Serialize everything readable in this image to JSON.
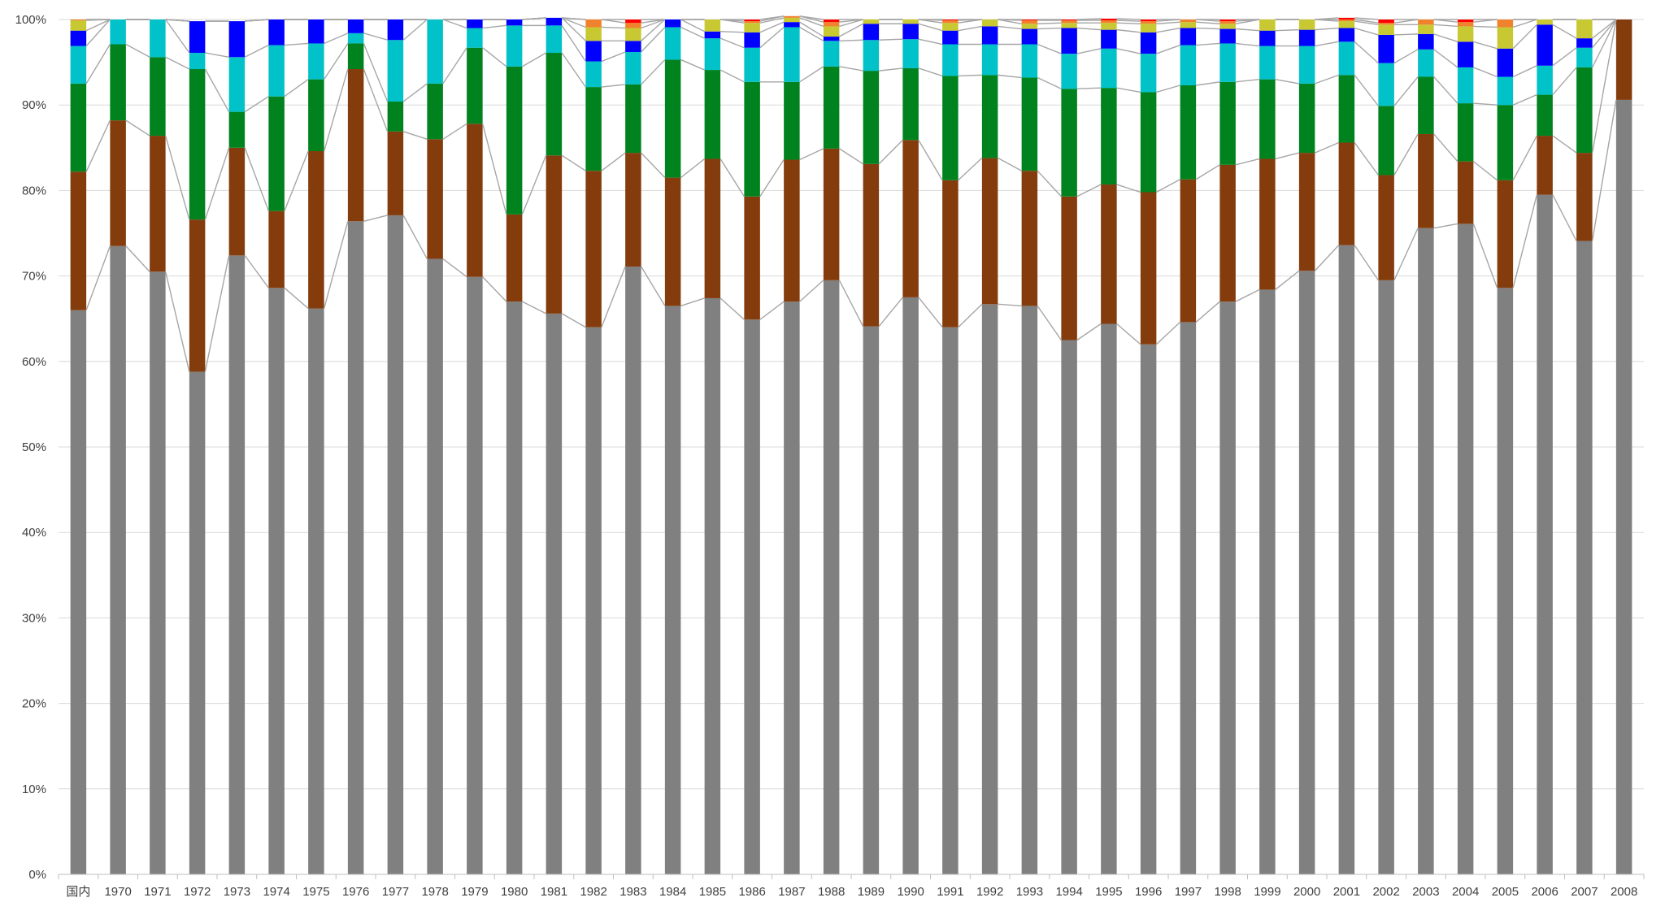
{
  "chart_data": {
    "type": "bar",
    "stacked": true,
    "percent_stacked": true,
    "title": "",
    "xlabel": "",
    "ylabel": "",
    "ylim": [
      0,
      100
    ],
    "y_tick_labels": [
      "0%",
      "10%",
      "20%",
      "30%",
      "40%",
      "50%",
      "60%",
      "70%",
      "80%",
      "90%",
      "100%"
    ],
    "grid": true,
    "legend": "none",
    "series_lines": true,
    "series_line_color": "#a6a6a6",
    "categories": [
      "国内",
      "1970",
      "1971",
      "1972",
      "1973",
      "1974",
      "1975",
      "1976",
      "1977",
      "1978",
      "1979",
      "1980",
      "1981",
      "1982",
      "1983",
      "1984",
      "1985",
      "1986",
      "1987",
      "1988",
      "1989",
      "1990",
      "1991",
      "1992",
      "1993",
      "1994",
      "1995",
      "1996",
      "1997",
      "1998",
      "1999",
      "2000",
      "2001",
      "2002",
      "2003",
      "2004",
      "2005",
      "2006",
      "2007",
      "2008"
    ],
    "series": [
      {
        "color": "#808080",
        "values": [
          66.0,
          73.5,
          70.5,
          58.8,
          72.4,
          68.6,
          66.2,
          76.4,
          77.1,
          72.0,
          69.9,
          67.0,
          65.6,
          64.0,
          71.1,
          66.5,
          67.4,
          64.9,
          67.0,
          69.5,
          64.1,
          67.5,
          64.0,
          66.7,
          66.5,
          62.5,
          64.4,
          62.0,
          64.6,
          67.0,
          68.4,
          70.6,
          73.6,
          69.5,
          75.6,
          76.1,
          68.6,
          79.5,
          74.1,
          90.6
        ]
      },
      {
        "color": "#843c0c",
        "values": [
          16.2,
          14.7,
          15.9,
          17.8,
          12.6,
          9.0,
          18.4,
          17.8,
          9.8,
          14.0,
          17.9,
          10.2,
          18.5,
          18.3,
          13.3,
          15.0,
          16.3,
          14.4,
          16.6,
          15.4,
          19.0,
          18.4,
          17.2,
          17.1,
          15.8,
          16.8,
          16.3,
          17.8,
          16.7,
          16.0,
          15.3,
          13.8,
          12.0,
          12.3,
          11.0,
          7.3,
          12.6,
          6.9,
          10.3,
          9.4
        ]
      },
      {
        "color": "#00821e",
        "values": [
          10.3,
          8.9,
          9.2,
          17.6,
          4.2,
          13.4,
          8.4,
          3.0,
          3.5,
          6.5,
          8.9,
          17.3,
          12.0,
          9.8,
          8.0,
          13.8,
          10.4,
          13.4,
          9.1,
          9.6,
          10.9,
          8.4,
          12.2,
          9.7,
          10.9,
          12.6,
          11.3,
          11.7,
          11.0,
          9.7,
          9.3,
          8.1,
          7.9,
          8.1,
          6.7,
          6.8,
          8.8,
          4.8,
          10.0,
          0.0
        ]
      },
      {
        "color": "#00c2c8",
        "values": [
          4.4,
          2.9,
          4.4,
          1.9,
          6.4,
          6.0,
          4.2,
          1.2,
          7.2,
          7.5,
          2.3,
          4.8,
          3.2,
          3.0,
          3.8,
          3.8,
          3.7,
          4.0,
          6.4,
          3.0,
          3.6,
          3.4,
          3.7,
          3.6,
          3.9,
          4.1,
          4.6,
          4.5,
          4.7,
          4.5,
          3.9,
          4.4,
          3.9,
          5.0,
          3.2,
          4.2,
          3.3,
          3.4,
          2.3,
          0.0
        ]
      },
      {
        "color": "#0000ff",
        "values": [
          1.8,
          0.0,
          0.0,
          3.7,
          4.2,
          3.0,
          2.8,
          1.6,
          2.4,
          0.0,
          1.0,
          0.7,
          0.9,
          2.4,
          1.3,
          0.9,
          0.8,
          1.8,
          0.6,
          0.5,
          1.9,
          1.8,
          1.6,
          2.1,
          1.8,
          3.0,
          2.2,
          2.5,
          2.0,
          1.7,
          1.8,
          1.9,
          1.6,
          3.3,
          1.8,
          3.0,
          3.3,
          4.8,
          1.1,
          0.0
        ]
      },
      {
        "color": "#c8c832",
        "values": [
          1.2,
          0.0,
          0.0,
          0.0,
          0.0,
          0.0,
          0.0,
          0.0,
          0.0,
          0.0,
          0.0,
          0.0,
          0.0,
          1.6,
          1.5,
          0.0,
          1.4,
          1.1,
          0.5,
          1.2,
          0.5,
          0.5,
          0.9,
          0.8,
          0.6,
          0.6,
          0.8,
          1.0,
          0.7,
          0.6,
          1.3,
          1.2,
          0.8,
          1.2,
          1.1,
          1.8,
          2.5,
          0.6,
          2.2,
          0.0
        ]
      },
      {
        "color": "#f0822d",
        "values": [
          0.1,
          0.0,
          0.0,
          0.0,
          0.0,
          0.0,
          0.0,
          0.0,
          0.0,
          0.0,
          0.0,
          0.0,
          0.0,
          0.9,
          0.6,
          0.0,
          0.0,
          0.2,
          0.2,
          0.5,
          0.0,
          0.0,
          0.3,
          0.0,
          0.4,
          0.3,
          0.3,
          0.3,
          0.3,
          0.3,
          0.0,
          0.0,
          0.2,
          0.2,
          0.6,
          0.5,
          0.9,
          0.0,
          0.0,
          0.0
        ]
      },
      {
        "color": "#ff0000",
        "values": [
          0.0,
          0.0,
          0.0,
          0.0,
          0.0,
          0.0,
          0.0,
          0.0,
          0.0,
          0.0,
          0.0,
          0.0,
          0.0,
          0.0,
          0.4,
          0.0,
          0.0,
          0.2,
          0.0,
          0.3,
          0.0,
          0.0,
          0.1,
          0.0,
          0.1,
          0.1,
          0.2,
          0.2,
          0.0,
          0.2,
          0.0,
          0.0,
          0.2,
          0.4,
          0.0,
          0.3,
          0.0,
          0.0,
          0.0,
          0.0
        ]
      }
    ]
  }
}
